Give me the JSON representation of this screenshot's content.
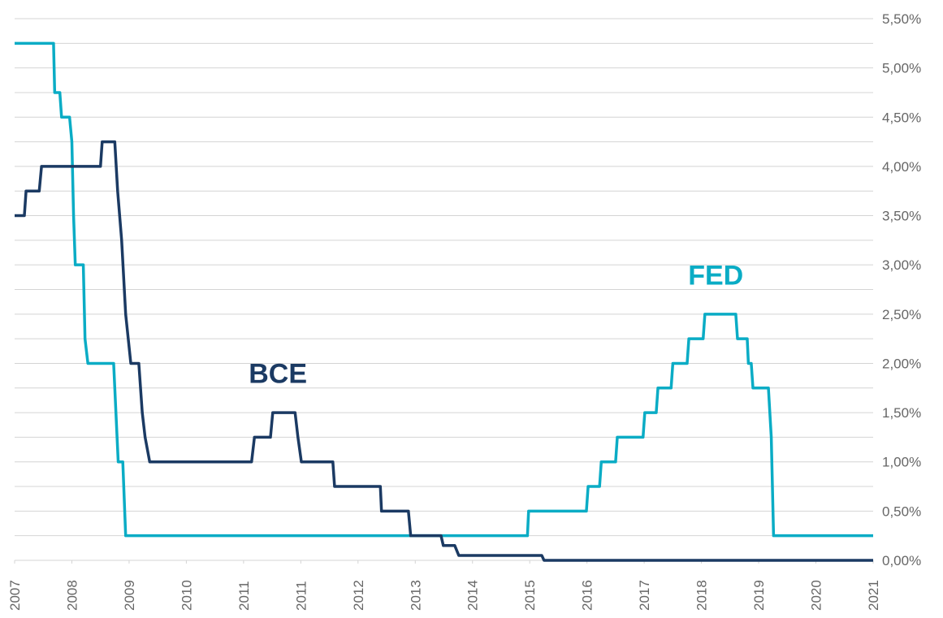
{
  "chart_data": {
    "type": "line",
    "xlim": [
      0,
      15
    ],
    "xticks": [
      {
        "value": 0,
        "label": "2007"
      },
      {
        "value": 1,
        "label": "2008"
      },
      {
        "value": 2,
        "label": "2009"
      },
      {
        "value": 3,
        "label": "2010"
      },
      {
        "value": 4,
        "label": "2011"
      },
      {
        "value": 5,
        "label": "2011"
      },
      {
        "value": 6,
        "label": "2012"
      },
      {
        "value": 7,
        "label": "2013"
      },
      {
        "value": 8,
        "label": "2014"
      },
      {
        "value": 9,
        "label": "2015"
      },
      {
        "value": 10,
        "label": "2016"
      },
      {
        "value": 11,
        "label": "2017"
      },
      {
        "value": 12,
        "label": "2018"
      },
      {
        "value": 13,
        "label": "2019"
      },
      {
        "value": 14,
        "label": "2020"
      },
      {
        "value": 15,
        "label": "2021"
      }
    ],
    "ylim": [
      0,
      5.5
    ],
    "yticks": [
      {
        "value": 0,
        "label": "0,00%"
      },
      {
        "value": 0.5,
        "label": "0,50%"
      },
      {
        "value": 1,
        "label": "1,00%"
      },
      {
        "value": 1.5,
        "label": "1,50%"
      },
      {
        "value": 2,
        "label": "2,00%"
      },
      {
        "value": 2.5,
        "label": "2,50%"
      },
      {
        "value": 3,
        "label": "3,00%"
      },
      {
        "value": 3.5,
        "label": "3,50%"
      },
      {
        "value": 4,
        "label": "4,00%"
      },
      {
        "value": 4.5,
        "label": "4,50%"
      },
      {
        "value": 5,
        "label": "5,00%"
      },
      {
        "value": 5.5,
        "label": "5,50%"
      }
    ],
    "minor_yticks": [
      0.25,
      0.75,
      1.25,
      1.75,
      2.25,
      2.75,
      3.25,
      3.75,
      4.25,
      4.75,
      5.25
    ],
    "grid": true,
    "series": [
      {
        "name": "FED",
        "color": "#0aacc5",
        "x": [
          0,
          0.68,
          0.7,
          0.79,
          0.82,
          0.96,
          1.0,
          1.03,
          1.06,
          1.2,
          1.23,
          1.28,
          1.73,
          1.81,
          1.89,
          1.94,
          8.96,
          8.98,
          9.99,
          10.02,
          10.22,
          10.25,
          10.5,
          10.53,
          10.98,
          11.01,
          11.21,
          11.24,
          11.47,
          11.5,
          11.75,
          11.78,
          12.03,
          12.06,
          12.6,
          12.63,
          12.8,
          12.82,
          12.87,
          12.9,
          13.17,
          13.22,
          13.26,
          15
        ],
        "values": [
          5.25,
          5.25,
          4.75,
          4.75,
          4.5,
          4.5,
          4.25,
          3.5,
          3.0,
          3.0,
          2.25,
          2.0,
          2.0,
          1.0,
          1.0,
          0.25,
          0.25,
          0.5,
          0.5,
          0.75,
          0.75,
          1.0,
          1.0,
          1.25,
          1.25,
          1.5,
          1.5,
          1.75,
          1.75,
          2.0,
          2.0,
          2.25,
          2.25,
          2.5,
          2.5,
          2.25,
          2.25,
          2.0,
          2.0,
          1.75,
          1.75,
          1.25,
          0.25,
          0.25
        ]
      },
      {
        "name": "BCE",
        "color": "#1b3a63",
        "x": [
          0,
          0.17,
          0.2,
          0.43,
          0.47,
          1.5,
          1.53,
          1.75,
          1.8,
          1.87,
          1.94,
          2.03,
          2.17,
          2.23,
          2.28,
          2.36,
          4.14,
          4.19,
          4.47,
          4.51,
          4.9,
          4.95,
          5.01,
          5.56,
          5.59,
          6.39,
          6.41,
          6.88,
          6.92,
          7.45,
          7.49,
          7.69,
          7.76,
          9.21,
          9.25,
          15
        ],
        "values": [
          3.5,
          3.5,
          3.75,
          3.75,
          4.0,
          4.0,
          4.25,
          4.25,
          3.75,
          3.25,
          2.5,
          2.0,
          2.0,
          1.5,
          1.25,
          1.0,
          1.0,
          1.25,
          1.25,
          1.5,
          1.5,
          1.25,
          1.0,
          1.0,
          0.75,
          0.75,
          0.5,
          0.5,
          0.25,
          0.25,
          0.15,
          0.15,
          0.05,
          0.05,
          0,
          0
        ]
      }
    ],
    "annotations": [
      {
        "text": "FED",
        "x": 12.25,
        "y": 2.8
      },
      {
        "text": "BCE",
        "x": 4.6,
        "y": 1.8
      }
    ]
  }
}
